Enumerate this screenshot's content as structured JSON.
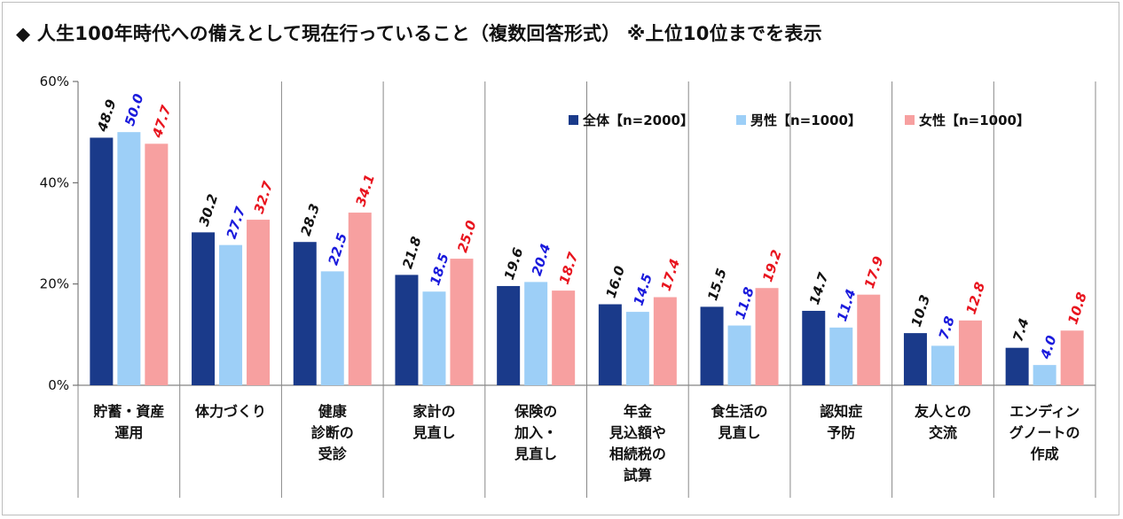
{
  "title": "◆ 人生100年時代への備えとして現在行っていること（複数回答形式） ※上位10位までを表示",
  "colors": {
    "all": "#1a3a8a",
    "male": "#9dcff7",
    "female": "#f7a0a0",
    "male_label": "#1a1adc",
    "female_label": "#e8141e"
  },
  "chart_data": {
    "type": "bar",
    "title": "",
    "xlabel": "",
    "ylabel": "",
    "ylim": [
      0,
      60
    ],
    "yticks": [
      "0%",
      "20%",
      "40%",
      "60%"
    ],
    "grid": false,
    "legend_position": "top-right",
    "categories": [
      [
        "貯蓄・資産",
        "運用"
      ],
      [
        "体力づくり"
      ],
      [
        "健康",
        "診断の",
        "受診"
      ],
      [
        "家計の",
        "見直し"
      ],
      [
        "保険の",
        "加入・",
        "見直し"
      ],
      [
        "年金",
        "見込額や",
        "相続税の",
        "試算"
      ],
      [
        "食生活の",
        "見直し"
      ],
      [
        "認知症",
        "予防"
      ],
      [
        "友人との",
        "交流"
      ],
      [
        "エンディン",
        "グノートの",
        "作成"
      ]
    ],
    "series": [
      {
        "name": "全体【n=2000】",
        "values": [
          48.9,
          30.2,
          28.3,
          21.8,
          19.6,
          16.0,
          15.5,
          14.7,
          10.3,
          7.4
        ]
      },
      {
        "name": "男性【n=1000】",
        "values": [
          50.0,
          27.7,
          22.5,
          18.5,
          20.4,
          14.5,
          11.8,
          11.4,
          7.8,
          4.0
        ]
      },
      {
        "name": "女性【n=1000】",
        "values": [
          47.7,
          32.7,
          34.1,
          25.0,
          18.7,
          17.4,
          19.2,
          17.9,
          12.8,
          10.8
        ]
      }
    ]
  }
}
